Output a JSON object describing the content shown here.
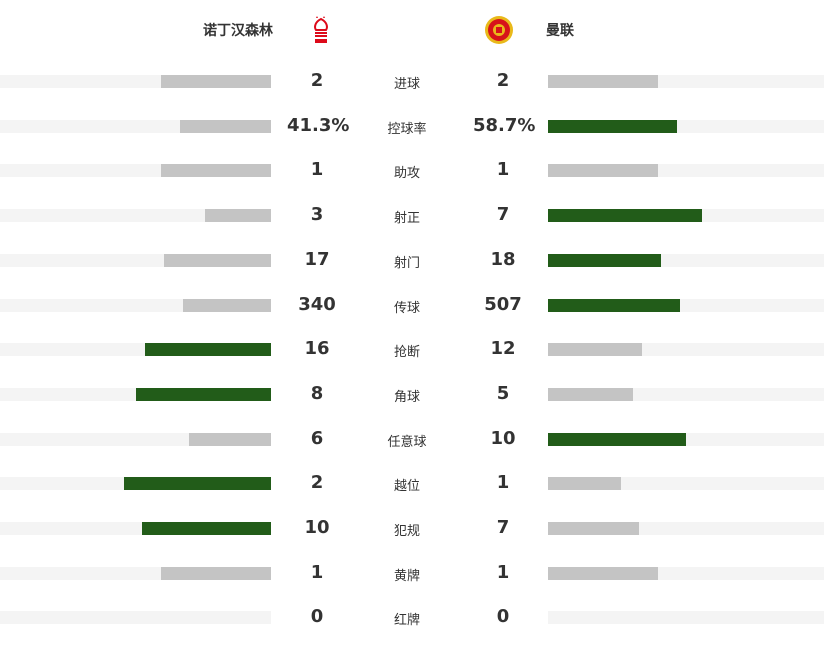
{
  "home": {
    "name": "诺丁汉森林",
    "logo": "nottingham-forest-crest"
  },
  "away": {
    "name": "曼联",
    "logo": "manchester-united-crest"
  },
  "colors": {
    "leader": "#225c19",
    "other": "#c4c4c4",
    "track": "#f4f4f4"
  },
  "stats": [
    {
      "label": "进球",
      "home": "2",
      "away": "2"
    },
    {
      "label": "控球率",
      "home": "41.3%",
      "away": "58.7%"
    },
    {
      "label": "助攻",
      "home": "1",
      "away": "1"
    },
    {
      "label": "射正",
      "home": "3",
      "away": "7"
    },
    {
      "label": "射门",
      "home": "17",
      "away": "18"
    },
    {
      "label": "传球",
      "home": "340",
      "away": "507"
    },
    {
      "label": "抢断",
      "home": "16",
      "away": "12"
    },
    {
      "label": "角球",
      "home": "8",
      "away": "5"
    },
    {
      "label": "任意球",
      "home": "6",
      "away": "10"
    },
    {
      "label": "越位",
      "home": "2",
      "away": "1"
    },
    {
      "label": "犯规",
      "home": "10",
      "away": "7"
    },
    {
      "label": "黄牌",
      "home": "1",
      "away": "1"
    },
    {
      "label": "红牌",
      "home": "0",
      "away": "0"
    }
  ]
}
